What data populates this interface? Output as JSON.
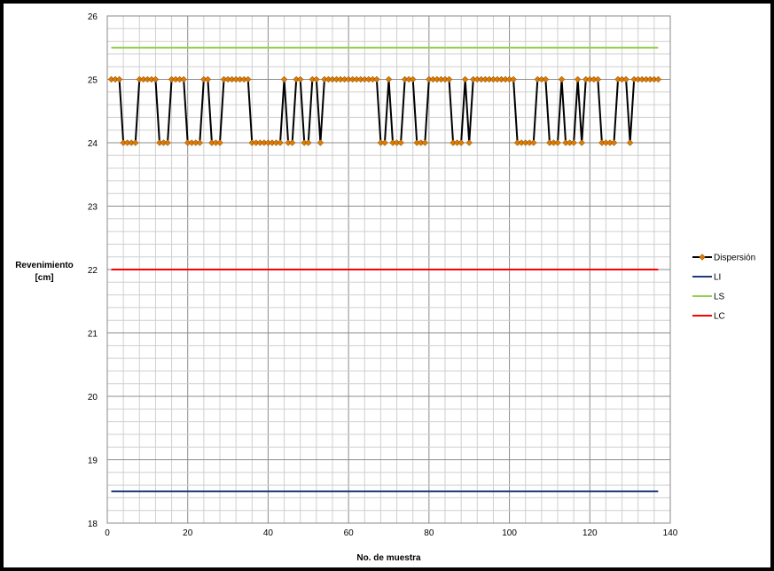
{
  "chart_data": {
    "type": "line",
    "title": "",
    "xlabel": "No. de muestra",
    "ylabel_lines": [
      "Revenimiento",
      "[cm]"
    ],
    "xlim": [
      0,
      140
    ],
    "ylim": [
      18,
      26
    ],
    "x_ticks": [
      0,
      20,
      40,
      60,
      80,
      100,
      120,
      140
    ],
    "y_ticks": [
      18,
      19,
      20,
      21,
      22,
      23,
      24,
      25,
      26
    ],
    "grid": true,
    "legend_position": "right",
    "series": [
      {
        "name": "Dispersión",
        "color": "#000000",
        "marker_color": "#e07b00",
        "marker": "diamond",
        "x_start": 1,
        "values": [
          25,
          25,
          25,
          24,
          24,
          24,
          24,
          25,
          25,
          25,
          25,
          25,
          24,
          24,
          24,
          25,
          25,
          25,
          25,
          24,
          24,
          24,
          24,
          25,
          25,
          24,
          24,
          24,
          25,
          25,
          25,
          25,
          25,
          25,
          25,
          24,
          24,
          24,
          24,
          24,
          24,
          24,
          24,
          25,
          24,
          24,
          25,
          25,
          24,
          24,
          25,
          25,
          24,
          25,
          25,
          25,
          25,
          25,
          25,
          25,
          25,
          25,
          25,
          25,
          25,
          25,
          25,
          24,
          24,
          25,
          24,
          24,
          24,
          25,
          25,
          25,
          24,
          24,
          24,
          25,
          25,
          25,
          25,
          25,
          25,
          24,
          24,
          24,
          25,
          24,
          25,
          25,
          25,
          25,
          25,
          25,
          25,
          25,
          25,
          25,
          25,
          24,
          24,
          24,
          24,
          24,
          25,
          25,
          25,
          24,
          24,
          24,
          25,
          24,
          24,
          24,
          25,
          24,
          25,
          25,
          25,
          25,
          24,
          24,
          24,
          24,
          25,
          25,
          25,
          24,
          25,
          25,
          25,
          25,
          25,
          25,
          25
        ]
      },
      {
        "name": "LI",
        "color": "#1f3a7a",
        "x_range": [
          1,
          137
        ],
        "value": 18.5
      },
      {
        "name": "LS",
        "color": "#92d050",
        "x_range": [
          1,
          137
        ],
        "value": 25.5
      },
      {
        "name": "LC",
        "color": "#ff0000",
        "x_range": [
          1,
          137
        ],
        "value": 22
      }
    ]
  }
}
